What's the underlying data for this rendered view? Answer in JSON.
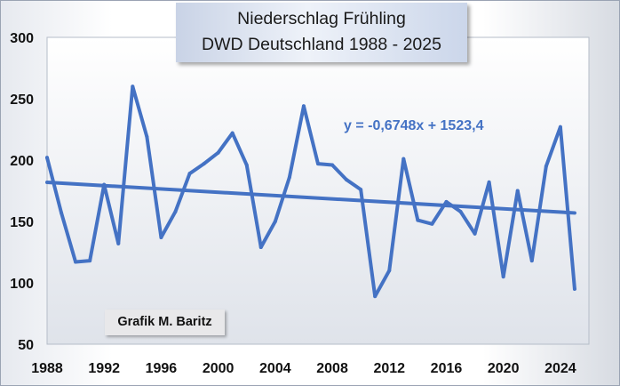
{
  "chart_data": {
    "type": "line",
    "title_line1": "Niederschlag Frühling",
    "title_line2": "DWD Deutschland 1988 - 2025",
    "xlim": [
      1988,
      2026
    ],
    "ylim": [
      50,
      300
    ],
    "x_ticks": [
      1988,
      1992,
      1996,
      2000,
      2004,
      2008,
      2012,
      2016,
      2020,
      2024
    ],
    "y_ticks": [
      50,
      100,
      150,
      200,
      250,
      300
    ],
    "grid": false,
    "line_color": "#4472c4",
    "series": [
      {
        "x": [
          1988,
          1989,
          1990,
          1991,
          1992,
          1993,
          1994,
          1995,
          1996,
          1997,
          1998,
          1999,
          2000,
          2001,
          2002,
          2003,
          2004,
          2005,
          2006,
          2007,
          2008,
          2009,
          2010,
          2011,
          2012,
          2013,
          2014,
          2015,
          2016,
          2017,
          2018,
          2019,
          2020,
          2021,
          2022,
          2023,
          2024,
          2025
        ],
        "values": [
          202,
          157,
          117,
          118,
          180,
          132,
          260,
          219,
          137,
          158,
          189,
          197,
          206,
          222,
          196,
          129,
          150,
          186,
          244,
          197,
          196,
          184,
          176,
          89,
          110,
          201,
          151,
          148,
          166,
          158,
          140,
          182,
          105,
          175,
          118,
          195,
          227,
          95
        ]
      }
    ],
    "trendline": {
      "slope": -0.6748,
      "intercept": 1523.4,
      "label": "y = -0,6748x + 1523,4"
    },
    "credit": "Grafik M. Baritz"
  }
}
